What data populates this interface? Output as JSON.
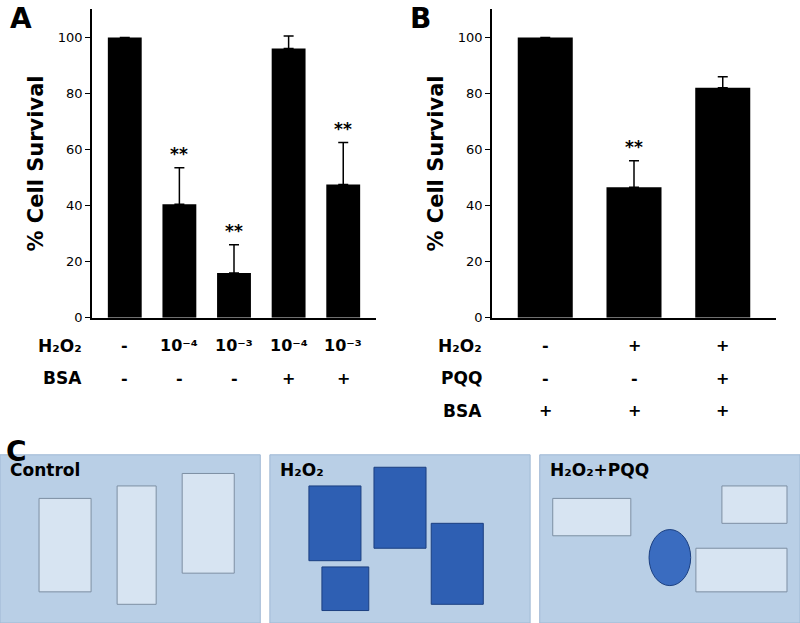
{
  "chart_data": [
    {
      "type": "bar",
      "title": "A",
      "y_label": "% Cell Survival",
      "category_rows": [
        "H₂O₂",
        "BSA"
      ],
      "categories": [
        [
          "-",
          "-"
        ],
        [
          "10⁻⁴",
          "-"
        ],
        [
          "10⁻³",
          "-"
        ],
        [
          "10⁻⁴",
          "+"
        ],
        [
          "10⁻³",
          "+"
        ]
      ],
      "values": [
        100,
        40.5,
        16,
        96,
        47.5
      ],
      "errors": [
        null,
        13,
        10,
        4.5,
        15
      ],
      "significance": [
        null,
        "**",
        "**",
        null,
        "**"
      ],
      "color": "#000000",
      "ylim": [
        0,
        110
      ],
      "yticks": [
        0,
        20,
        40,
        60,
        80,
        100
      ],
      "grid": false
    },
    {
      "type": "bar",
      "title": "B",
      "y_label": "% Cell Survival",
      "category_rows": [
        "H₂O₂",
        "PQQ",
        "BSA"
      ],
      "categories": [
        [
          "-",
          "-",
          "+"
        ],
        [
          "+",
          "-",
          "+"
        ],
        [
          "+",
          "+",
          "+"
        ]
      ],
      "values": [
        100,
        46.5,
        82
      ],
      "errors": [
        null,
        9.5,
        4
      ],
      "significance": [
        null,
        "**",
        null
      ],
      "color": "#000000",
      "ylim": [
        0,
        110
      ],
      "yticks": [
        0,
        20,
        40,
        60,
        80,
        100
      ],
      "grid": false
    }
  ],
  "micrographs": {
    "title": "C",
    "labels": [
      "Control",
      "H₂O₂",
      "H₂O₂+PQQ"
    ]
  }
}
